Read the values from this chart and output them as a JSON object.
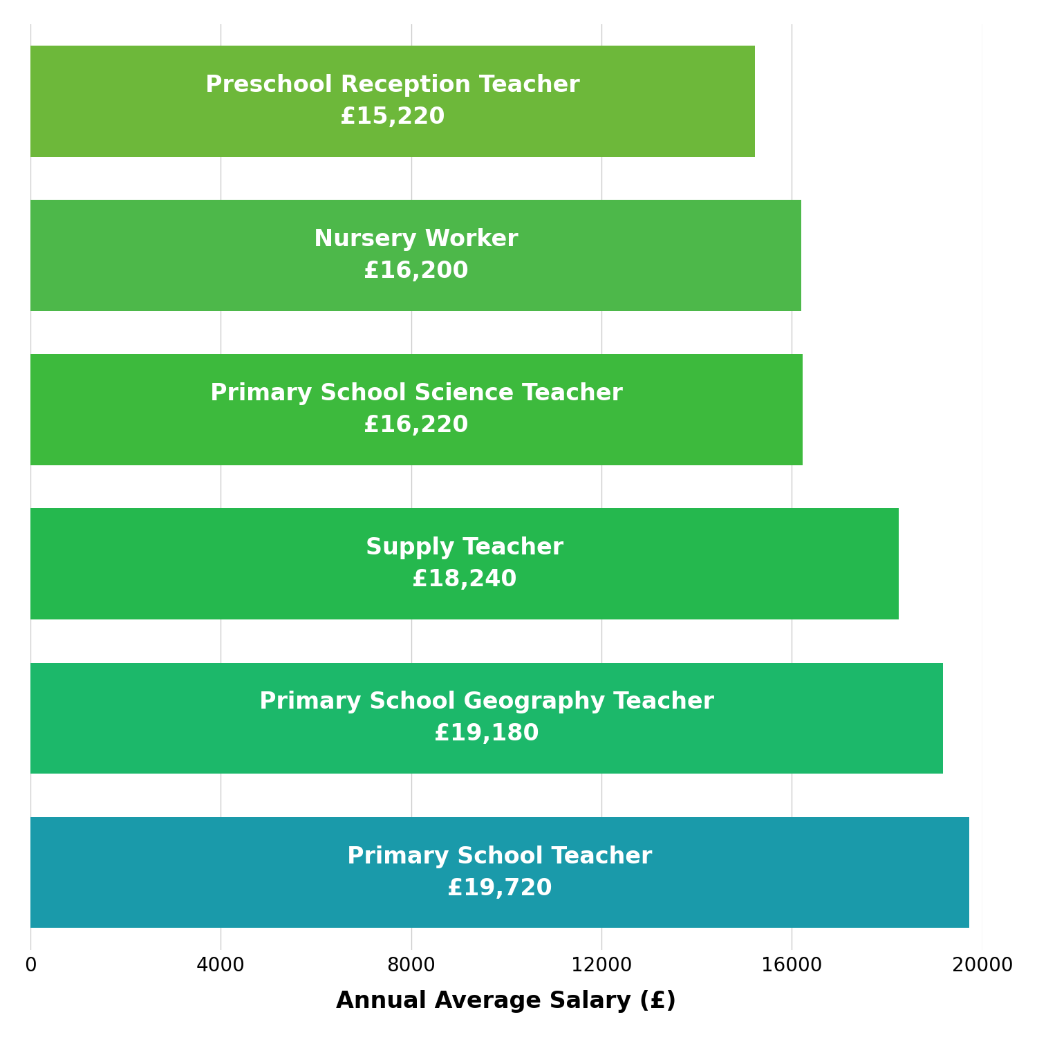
{
  "categories_top_to_bottom": [
    "Preschool Reception Teacher",
    "Nursery Worker",
    "Primary School Science Teacher",
    "Supply Teacher",
    "Primary School Geography Teacher",
    "Primary School Teacher"
  ],
  "values_top_to_bottom": [
    15220,
    16200,
    16220,
    18240,
    19180,
    19720
  ],
  "labels_top_to_bottom": [
    "Preschool Reception Teacher\n£15,220",
    "Nursery Worker\n£16,200",
    "Primary School Science Teacher\n£16,220",
    "Supply Teacher\n£18,240",
    "Primary School Geography Teacher\n£19,180",
    "Primary School Teacher\n£19,720"
  ],
  "bar_colors_top_to_bottom": [
    "#6db83a",
    "#4db84a",
    "#3dba3d",
    "#25b84e",
    "#1cb86a",
    "#1a9aaa"
  ],
  "xlabel": "Annual Average Salary (£)",
  "xlim": [
    0,
    20000
  ],
  "xtick_values": [
    0,
    4000,
    8000,
    12000,
    16000,
    20000
  ],
  "background_color": "#ffffff",
  "text_color": "#ffffff",
  "label_fontsize": 24,
  "xlabel_fontsize": 24,
  "tick_fontsize": 20,
  "bar_height": 0.72,
  "grid_color": "#cccccc"
}
